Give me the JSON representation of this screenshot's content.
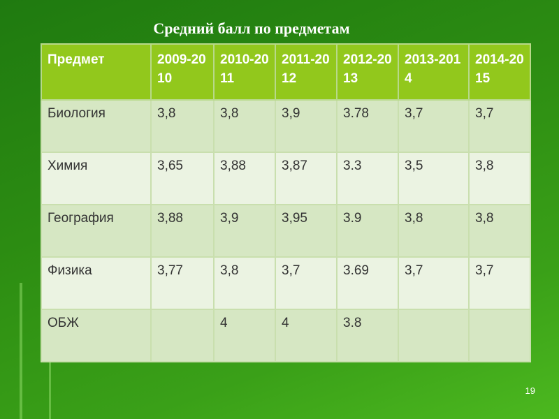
{
  "title": "Средний балл по предметам",
  "table": {
    "header": [
      "Предмет",
      "2009-2010",
      "2010-2011",
      "2011-2012",
      "2012-2013",
      "2013-2014",
      "2014-2015"
    ],
    "rows": [
      [
        "Биология",
        "3,8",
        "3,8",
        "3,9",
        "3.78",
        "3,7",
        "3,7"
      ],
      [
        "Химия",
        "3,65",
        "3,88",
        "3,87",
        "3.3",
        "3,5",
        "3,8"
      ],
      [
        "География",
        "3,88",
        "3,9",
        "3,95",
        "3.9",
        "3,8",
        "3,8"
      ],
      [
        "Физика",
        "3,77",
        "3,8",
        "3,7",
        "3.69",
        "3,7",
        "3,7"
      ],
      [
        "ОБЖ",
        null,
        "4",
        "4",
        "3.8",
        null,
        null
      ]
    ]
  },
  "slide_number": "19"
}
